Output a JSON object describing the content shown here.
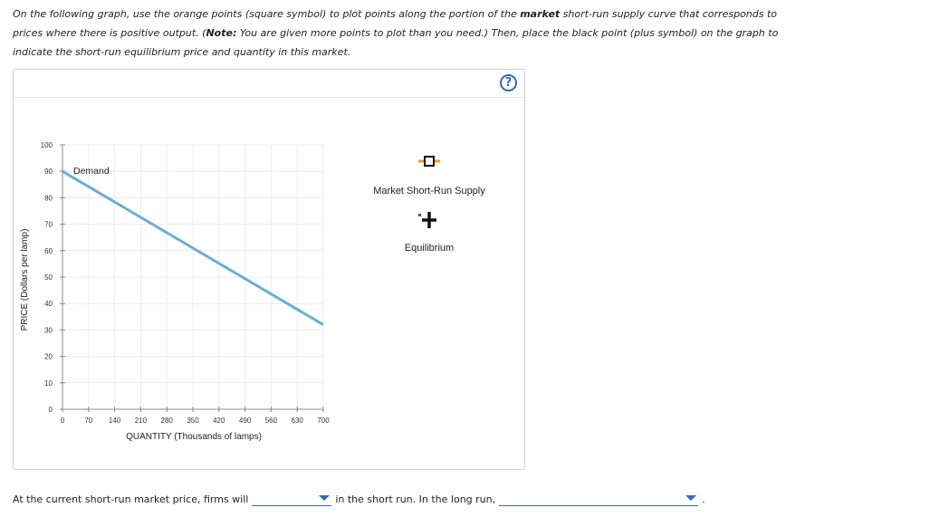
{
  "instructions": {
    "part1": "On the following graph, use the orange points (square symbol) to plot points along the portion of the ",
    "bold1": "market",
    "part2": " short-run supply curve that corresponds to prices where there is positive output. (",
    "bold2": "Note:",
    "part3": " You are given more points to plot than you need.) Then, place the black point (plus symbol) on the graph to indicate the short-run equilibrium price and quantity in this market."
  },
  "help_icon_label": "?",
  "legend": {
    "supply_label": "Market Short-Run Supply",
    "equilibrium_label": "Equilibrium",
    "supply_color": "#f39c1f",
    "equilibrium_color": "#111111"
  },
  "chart_data": {
    "type": "line",
    "xlabel": "QUANTITY (Thousands of lamps)",
    "ylabel": "PRICE (Dollars per lamp)",
    "xlim": [
      0,
      700
    ],
    "ylim": [
      0,
      100
    ],
    "x_ticks": [
      0,
      70,
      140,
      210,
      280,
      350,
      420,
      490,
      560,
      630,
      700
    ],
    "y_ticks": [
      0,
      10,
      20,
      30,
      40,
      50,
      60,
      70,
      80,
      90,
      100
    ],
    "grid": true,
    "series": [
      {
        "name": "Demand",
        "color": "#6aaed6",
        "x": [
          0,
          700
        ],
        "y": [
          90,
          32
        ]
      }
    ]
  },
  "bottom": {
    "text1": "At the current short-run market price, firms will",
    "text2": "in the short run. In the long run,",
    "text3": "."
  }
}
